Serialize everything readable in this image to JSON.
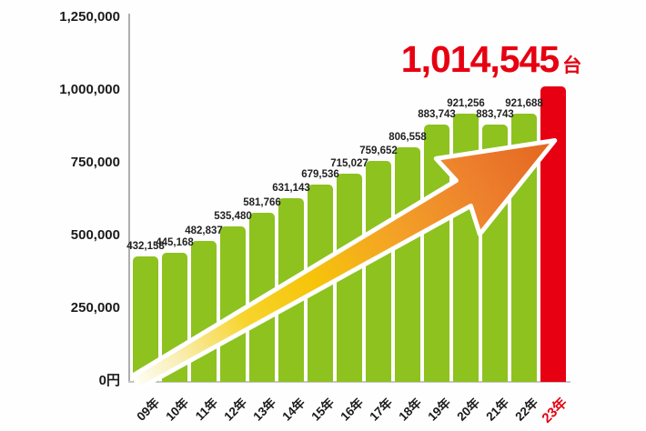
{
  "title": {
    "number": "1,014,545",
    "unit": "台"
  },
  "chart_data": {
    "type": "bar",
    "title": "1,014,545台",
    "categories": [
      "09年",
      "10年",
      "11年",
      "12年",
      "13年",
      "14年",
      "15年",
      "16年",
      "17年",
      "18年",
      "19年",
      "20年",
      "21年",
      "22年",
      "23年"
    ],
    "values": [
      432158,
      445168,
      482837,
      535480,
      581766,
      631143,
      679536,
      715027,
      759652,
      806558,
      883743,
      921256,
      883743,
      921688,
      1014545
    ],
    "value_labels": [
      "432,158",
      "445,168",
      "482,837",
      "535,480",
      "581,766",
      "631,143",
      "679,536",
      "715,027",
      "759,652",
      "806,558",
      "883,743",
      "921,256",
      "883,743",
      "921,688",
      "1,014,545"
    ],
    "highlight_index": 14,
    "xlabel": "",
    "ylabel": "",
    "ylim": [
      0,
      1250000
    ],
    "ytick_values": [
      0,
      250000,
      500000,
      750000,
      1000000,
      1250000
    ],
    "ytick_labels": [
      "0円",
      "250,000",
      "500,000",
      "750,000",
      "1,000,000",
      "1,250,000"
    ],
    "grid": false,
    "legend": "none",
    "bar_color": "#8dc21f",
    "highlight_color": "#e60012",
    "annotation": "diagonal upward growth arrow from 09年 toward 23年 bar"
  },
  "colors": {
    "value_label": "#222222",
    "axis_label": "#1b1b1b",
    "axis_line": "#aeaeae",
    "highlight_text": "#e60012",
    "arrow_outline": "#ffffff",
    "arrow_gradient": [
      "#fefdf3",
      "#f9eeb4",
      "#f7d42c",
      "#f6c40a",
      "#f3a127",
      "#ed7f2d",
      "#e2651f"
    ]
  }
}
